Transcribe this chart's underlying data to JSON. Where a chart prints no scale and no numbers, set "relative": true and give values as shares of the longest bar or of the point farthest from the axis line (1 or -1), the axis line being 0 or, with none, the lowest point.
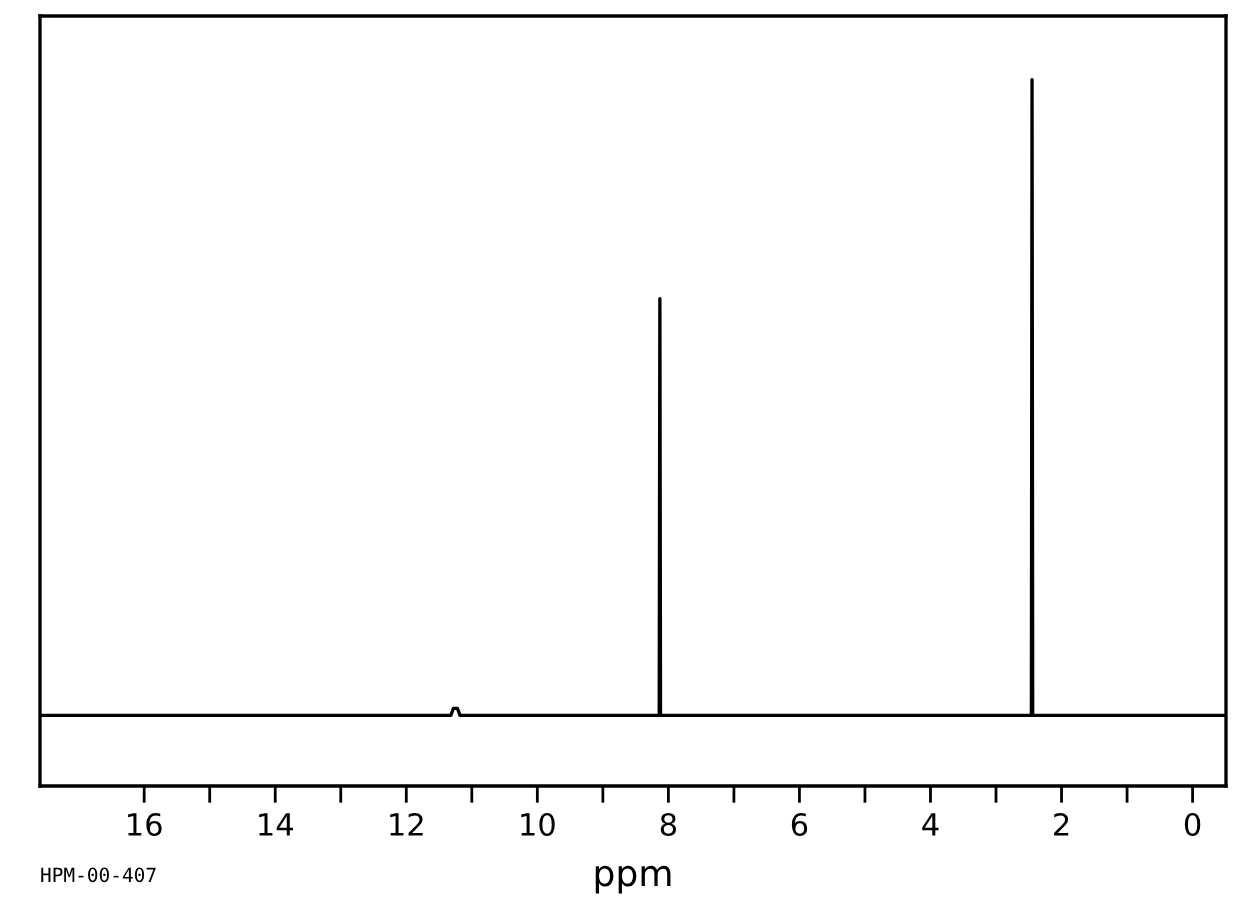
{
  "chart_data": {
    "type": "line",
    "relative": true,
    "xlabel": "ppm",
    "annotations": [
      "HPM-00-407"
    ],
    "color": "#000000",
    "x": [
      17.59,
      11.32,
      11.28,
      11.25,
      11.22,
      11.18,
      8.14,
      8.13,
      8.12,
      2.46,
      2.45,
      2.44,
      -0.51
    ],
    "values": [
      0.1,
      0.1,
      0.11,
      0.11,
      0.11,
      0.1,
      0.1,
      0.69,
      0.1,
      0.1,
      1,
      0.1,
      0.1
    ],
    "xlim": [
      17.59,
      -0.51
    ],
    "xticks": [
      16,
      {
        "value": 15,
        "label": null
      },
      14,
      {
        "value": 13,
        "label": null
      },
      12,
      {
        "value": 11,
        "label": null
      },
      10,
      {
        "value": 9,
        "label": null
      },
      8,
      {
        "value": 7,
        "label": null
      },
      6,
      {
        "value": 5,
        "label": null
      },
      4,
      {
        "value": 3,
        "label": null
      },
      2,
      {
        "value": 1,
        "label": null
      },
      0
    ],
    "tick_labels": "x",
    "grid": false,
    "legend": false
  }
}
